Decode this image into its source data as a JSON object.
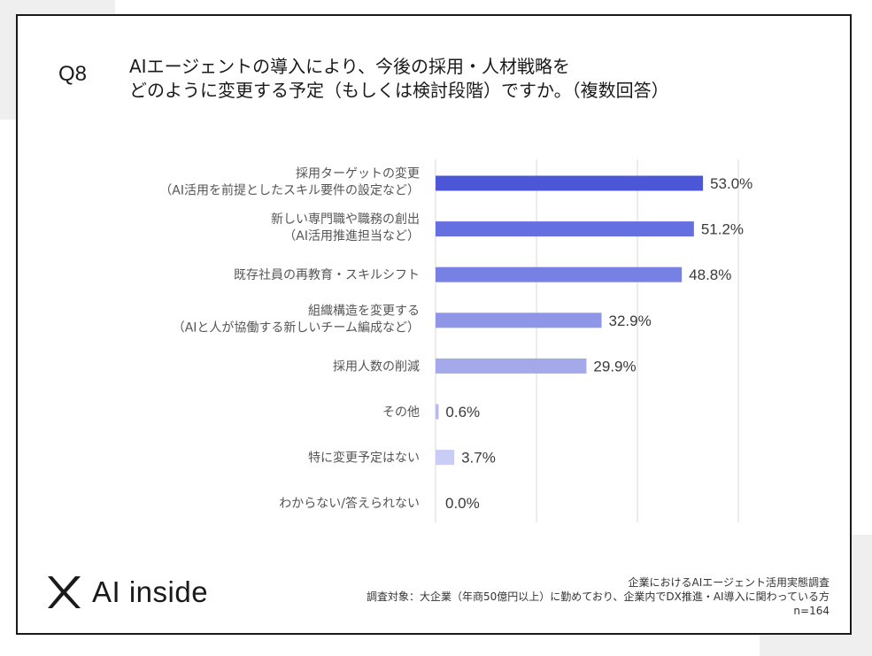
{
  "question": {
    "number": "Q8",
    "line1": "AIエージェントの導入により、今後の採用・人材戦略を",
    "line2": "どのように変更する予定（もしくは検討段階）ですか。（複数回答）"
  },
  "chart_data": {
    "type": "bar",
    "orientation": "horizontal",
    "title": "",
    "xlabel": "",
    "ylabel": "",
    "xlim": [
      0,
      60
    ],
    "grid": true,
    "unit": "%",
    "categories": [
      [
        "採用ターゲットの変更",
        "（AI活用を前提としたスキル要件の設定など）"
      ],
      [
        "新しい専門職や職務の創出",
        "（AI活用推進担当など）"
      ],
      [
        "既存社員の再教育・スキルシフト"
      ],
      [
        "組織構造を変更する",
        "（AIと人が協働する新しいチーム編成など）"
      ],
      [
        "採用人数の削減"
      ],
      [
        "その他"
      ],
      [
        "特に変更予定はない"
      ],
      [
        "わからない/答えられない"
      ]
    ],
    "values": [
      53.0,
      51.2,
      48.8,
      32.9,
      29.9,
      0.6,
      3.7,
      0.0
    ],
    "value_labels": [
      "53.0%",
      "51.2%",
      "48.8%",
      "32.9%",
      "29.9%",
      "0.6%",
      "3.7%",
      "0.0%"
    ],
    "colors": [
      "#4b56d8",
      "#6570e0",
      "#7780e3",
      "#8f96e8",
      "#a4a9ec",
      "#b7bbf0",
      "#c9ccf4",
      "#d6d8f7"
    ]
  },
  "logo": {
    "text": "AI inside",
    "icon": "ai-inside-x-icon"
  },
  "footer": {
    "line1": "企業におけるAIエージェント活用実態調査",
    "line2": "調査対象：大企業（年商50億円以上）に勤めており、企業内でDX推進・AI導入に関わっている方",
    "line3": "n=164"
  }
}
